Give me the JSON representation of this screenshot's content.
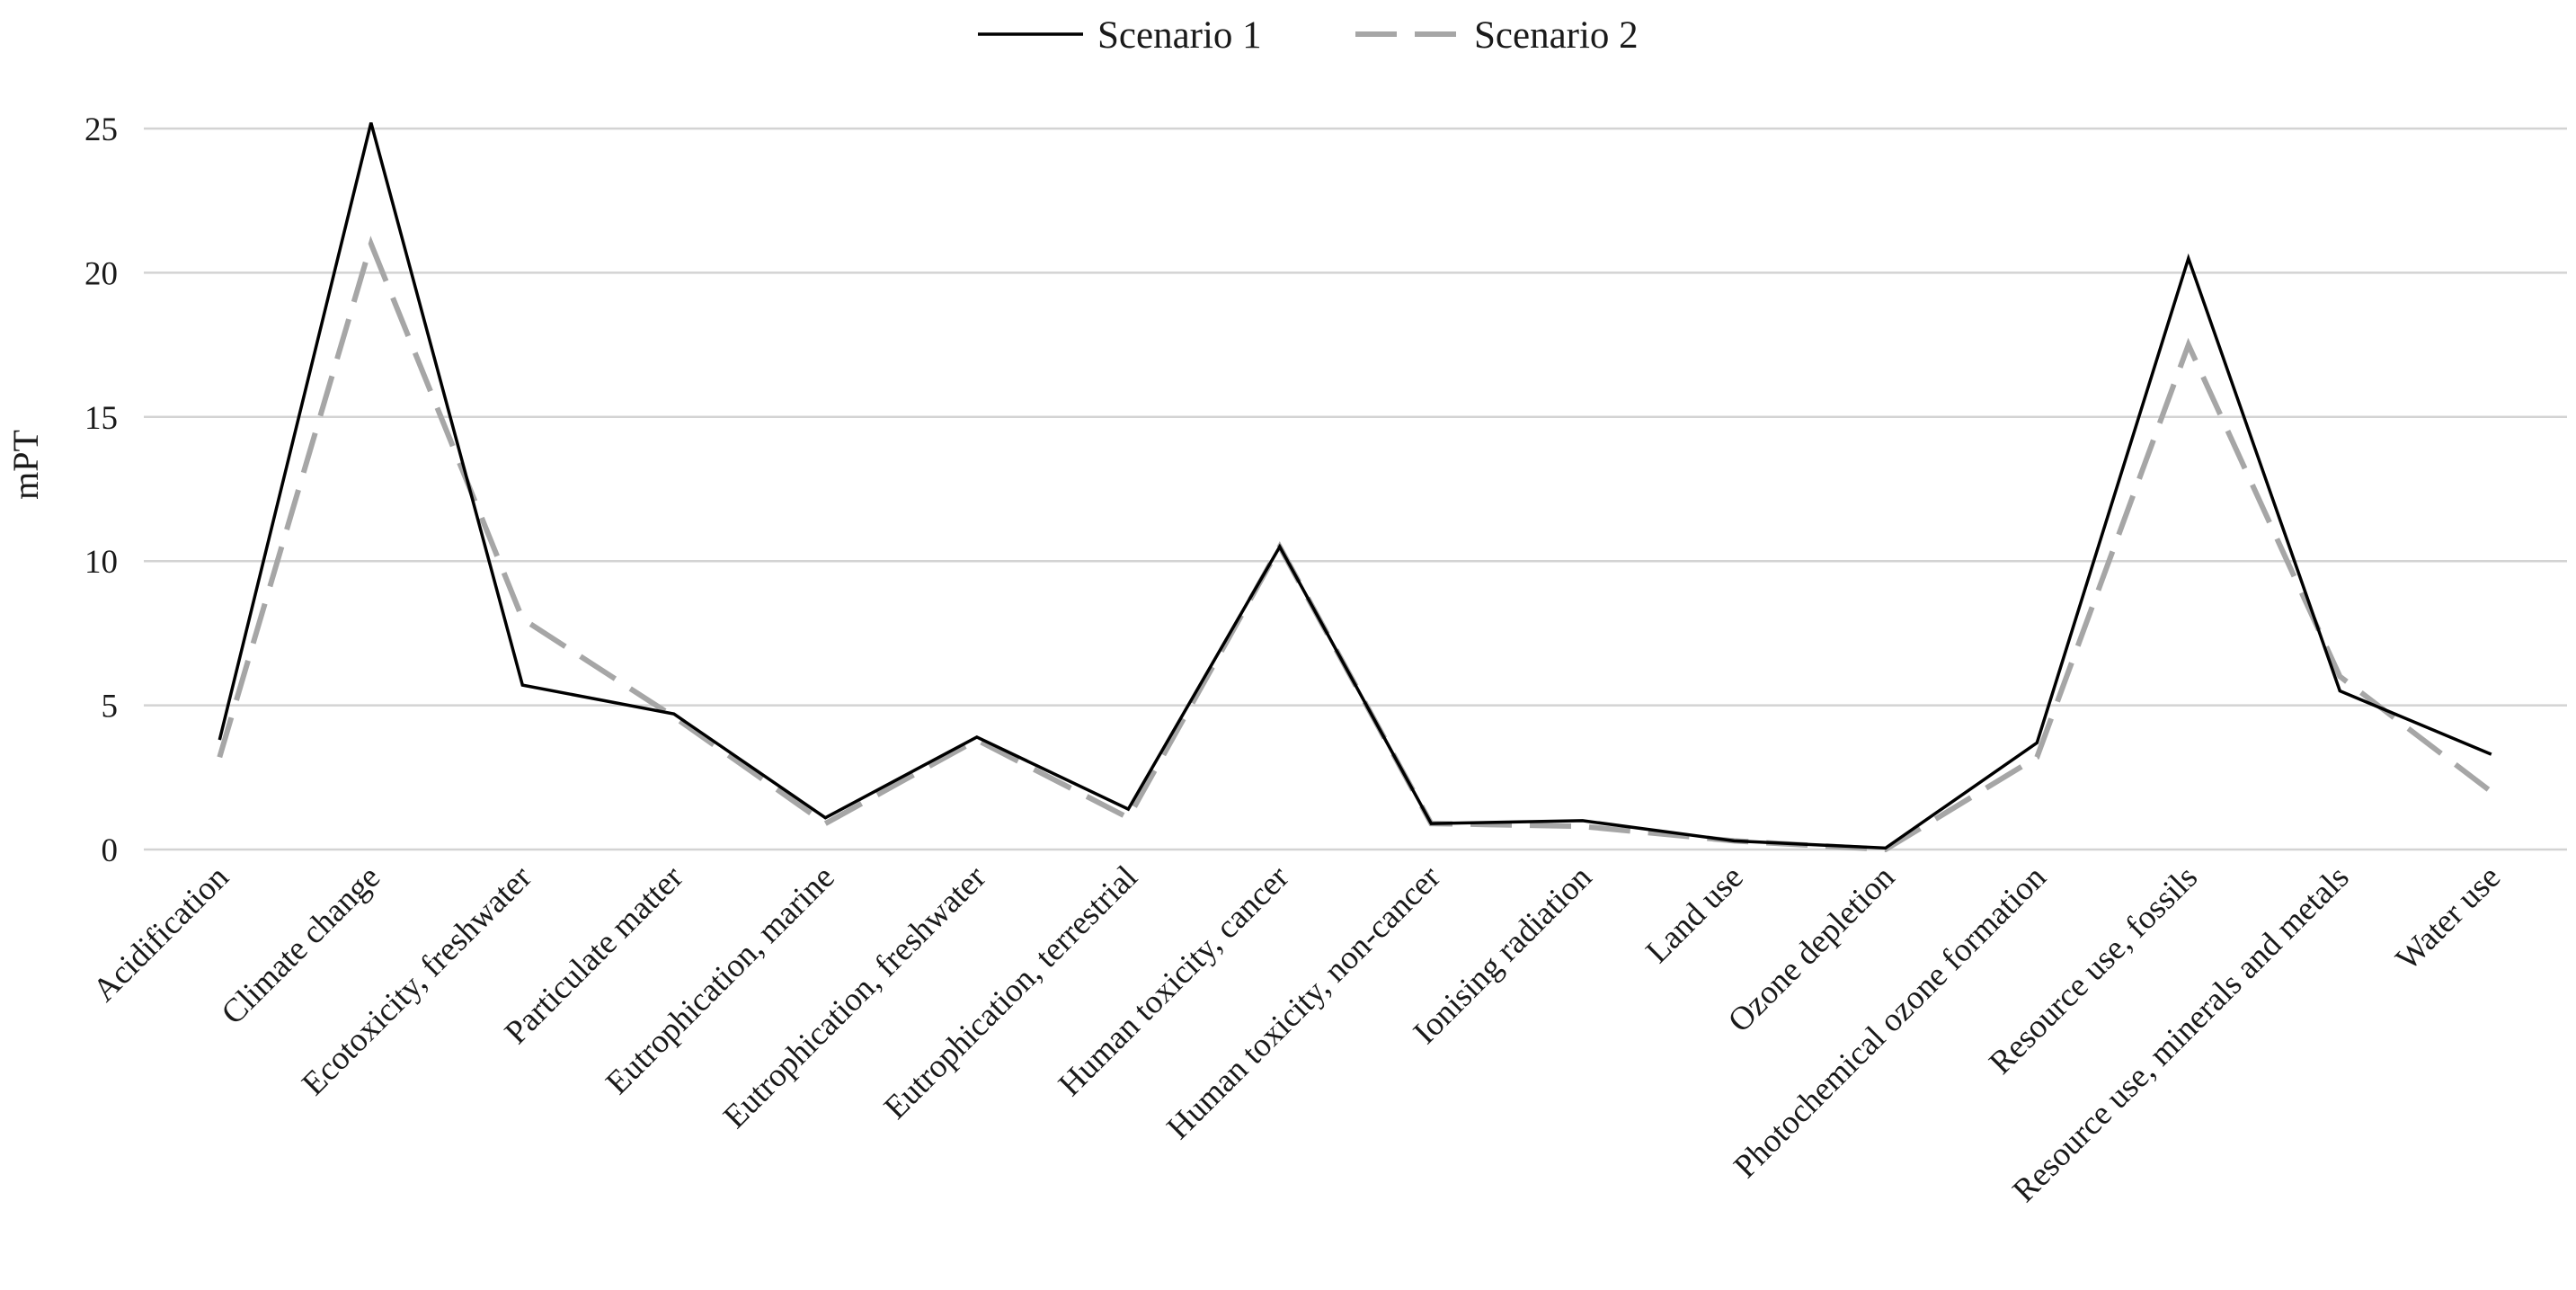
{
  "chart_data": {
    "type": "line",
    "title": "",
    "xlabel": "",
    "ylabel": "mPT",
    "ylim": [
      0,
      25
    ],
    "yticks": [
      0,
      5,
      10,
      15,
      20,
      25
    ],
    "grid": "horizontal",
    "legend": "top-center",
    "categories": [
      "Acidification",
      "Climate change",
      "Ecotoxicity, freshwater",
      "Particulate matter",
      "Eutrophication, marine",
      "Eutrophication, freshwater",
      "Eutrophication, terrestrial",
      "Human toxicity, cancer",
      "Human toxicity, non-cancer",
      "Ionising radiation",
      "Land use",
      "Ozone depletion",
      "Photochemical ozone formation",
      "Resource use, fossils",
      "Resource use, minerals and metals",
      "Water use"
    ],
    "series": [
      {
        "name": "Scenario 1",
        "color": "#000000",
        "dash": "solid",
        "values": [
          3.8,
          25.2,
          5.7,
          4.7,
          1.1,
          3.9,
          1.4,
          10.5,
          0.9,
          1.0,
          0.3,
          0.05,
          3.7,
          20.5,
          5.5,
          3.3
        ]
      },
      {
        "name": "Scenario 2",
        "color": "#a6a6a6",
        "dash": "dashed",
        "values": [
          3.2,
          21.0,
          8.0,
          4.6,
          0.9,
          3.8,
          1.1,
          10.5,
          0.9,
          0.8,
          0.3,
          0.0,
          3.2,
          17.5,
          6.0,
          2.0
        ]
      }
    ]
  }
}
